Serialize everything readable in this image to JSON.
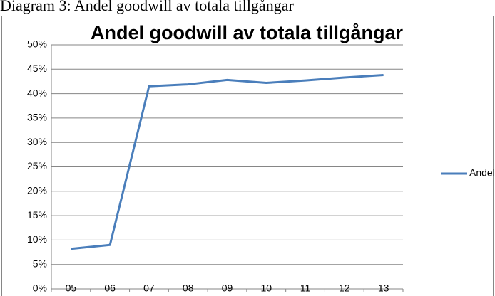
{
  "caption": "Diagram 3: Andel goodwill av totala tillgångar",
  "chart_data": {
    "type": "line",
    "title": "Andel goodwill av totala tillgångar",
    "categories": [
      "05",
      "06",
      "07",
      "08",
      "09",
      "10",
      "11",
      "12",
      "13"
    ],
    "series": [
      {
        "name": "Andel",
        "color": "#4a7ebb",
        "values": [
          8.2,
          9,
          41.5,
          41.9,
          42.8,
          42.2,
          42.7,
          43.3,
          43.8
        ]
      }
    ],
    "ylim": [
      0,
      50
    ],
    "yticks": [
      {
        "value": 0,
        "label": "0%"
      },
      {
        "value": 5,
        "label": "5%"
      },
      {
        "value": 10,
        "label": "10%"
      },
      {
        "value": 15,
        "label": "15%"
      },
      {
        "value": 20,
        "label": "20%"
      },
      {
        "value": 25,
        "label": "25%"
      },
      {
        "value": 30,
        "label": "30%"
      },
      {
        "value": 35,
        "label": "35%"
      },
      {
        "value": 40,
        "label": "40%"
      },
      {
        "value": 45,
        "label": "45%"
      },
      {
        "value": 50,
        "label": "50%"
      }
    ],
    "grid": true,
    "legend": "right"
  }
}
